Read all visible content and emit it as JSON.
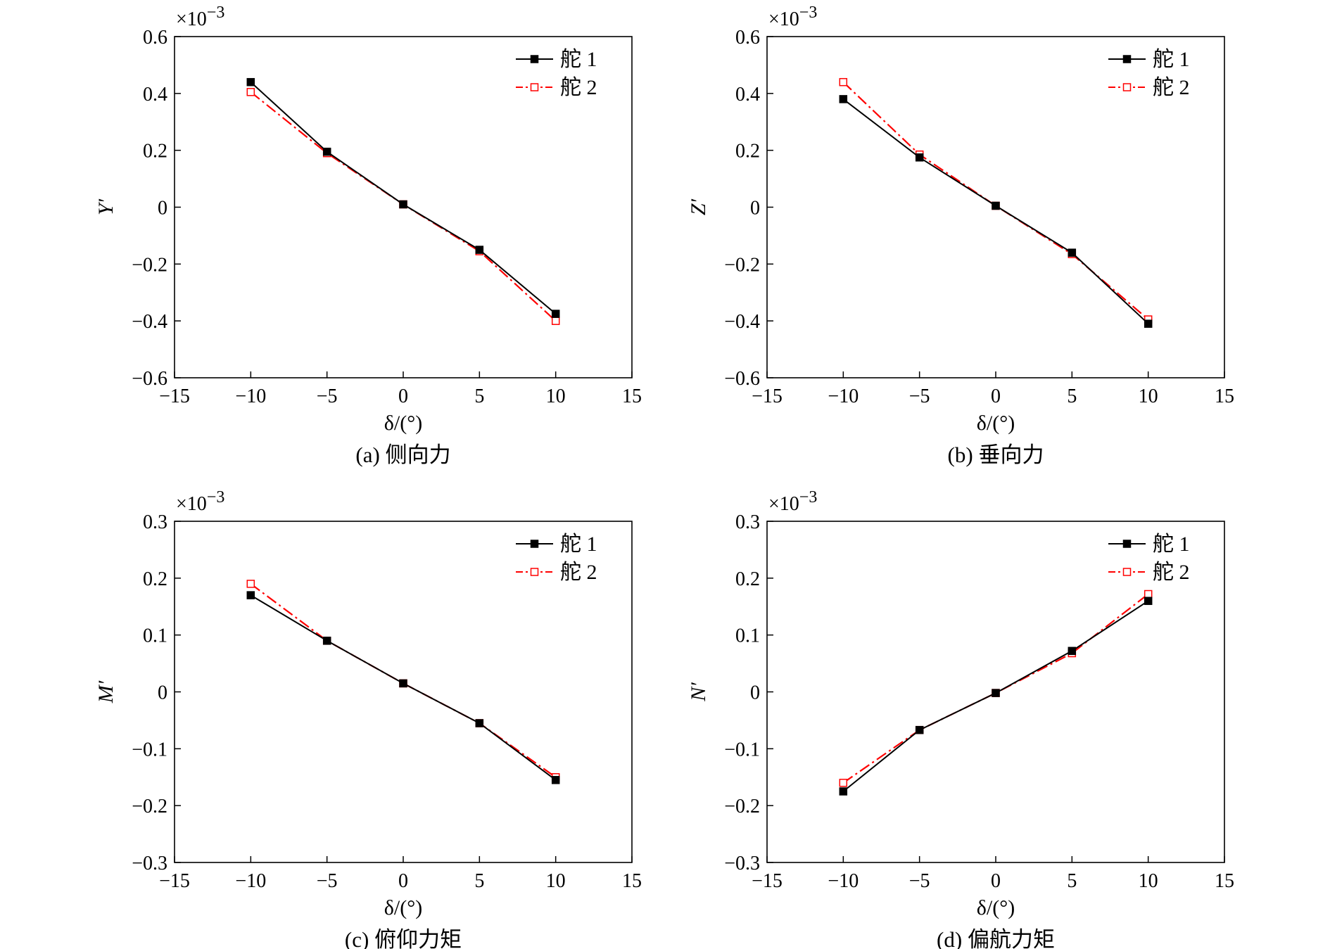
{
  "chart_data": [
    {
      "type": "line",
      "panel": "a",
      "caption": "(a) 侧向力",
      "ylabel": "Y′",
      "xlabel": "δ/(°)",
      "multiplier": "×10",
      "multiplier_exp": "−3",
      "xlim": [
        -15,
        15
      ],
      "ylim": [
        -0.6,
        0.6
      ],
      "xticks": [
        -15,
        -10,
        -5,
        0,
        5,
        10,
        15
      ],
      "xtick_labels": [
        "−15",
        "−10",
        "−5",
        "0",
        "5",
        "10",
        "15"
      ],
      "yticks": [
        0.6,
        0.4,
        0.2,
        0,
        -0.2,
        -0.4,
        -0.6
      ],
      "ytick_labels": [
        "0.6",
        "0.4",
        "0.2",
        "0",
        "−0.2",
        "−0.4",
        "−0.6"
      ],
      "legend_position": "top-right",
      "x": [
        -10,
        -5,
        0,
        5,
        10
      ],
      "series": [
        {
          "name": "舵 1",
          "color": "#000000",
          "style": "solid",
          "marker": "filled-square",
          "values": [
            0.44,
            0.195,
            0.01,
            -0.15,
            -0.375
          ]
        },
        {
          "name": "舵 2",
          "color": "#ff0000",
          "style": "dash-dot",
          "marker": "open-square",
          "values": [
            0.405,
            0.19,
            0.01,
            -0.155,
            -0.4
          ]
        }
      ]
    },
    {
      "type": "line",
      "panel": "b",
      "caption": "(b) 垂向力",
      "ylabel": "Z′",
      "xlabel": "δ/(°)",
      "multiplier": "×10",
      "multiplier_exp": "−3",
      "xlim": [
        -15,
        15
      ],
      "ylim": [
        -0.6,
        0.6
      ],
      "xticks": [
        -15,
        -10,
        -5,
        0,
        5,
        10,
        15
      ],
      "xtick_labels": [
        "−15",
        "−10",
        "−5",
        "0",
        "5",
        "10",
        "15"
      ],
      "yticks": [
        0.6,
        0.4,
        0.2,
        0,
        -0.2,
        -0.4,
        -0.6
      ],
      "ytick_labels": [
        "0.6",
        "0.4",
        "0.2",
        "0",
        "−0.2",
        "−0.4",
        "−0.6"
      ],
      "legend_position": "top-right",
      "x": [
        -10,
        -5,
        0,
        5,
        10
      ],
      "series": [
        {
          "name": "舵 1",
          "color": "#000000",
          "style": "solid",
          "marker": "filled-square",
          "values": [
            0.38,
            0.175,
            0.005,
            -0.16,
            -0.41
          ]
        },
        {
          "name": "舵 2",
          "color": "#ff0000",
          "style": "dash-dot",
          "marker": "open-square",
          "values": [
            0.44,
            0.185,
            0.005,
            -0.165,
            -0.395
          ]
        }
      ]
    },
    {
      "type": "line",
      "panel": "c",
      "caption": "(c) 俯仰力矩",
      "ylabel": "M′",
      "xlabel": "δ/(°)",
      "multiplier": "×10",
      "multiplier_exp": "−3",
      "xlim": [
        -15,
        15
      ],
      "ylim": [
        -0.3,
        0.3
      ],
      "xticks": [
        -15,
        -10,
        -5,
        0,
        5,
        10,
        15
      ],
      "xtick_labels": [
        "−15",
        "−10",
        "−5",
        "0",
        "5",
        "10",
        "15"
      ],
      "yticks": [
        0.3,
        0.2,
        0.1,
        0,
        -0.1,
        -0.2,
        -0.3
      ],
      "ytick_labels": [
        "0.3",
        "0.2",
        "0.1",
        "0",
        "−0.1",
        "−0.2",
        "−0.3"
      ],
      "legend_position": "top-right",
      "x": [
        -10,
        -5,
        0,
        5,
        10
      ],
      "series": [
        {
          "name": "舵 1",
          "color": "#000000",
          "style": "solid",
          "marker": "filled-square",
          "values": [
            0.17,
            0.09,
            0.015,
            -0.055,
            -0.155
          ]
        },
        {
          "name": "舵 2",
          "color": "#ff0000",
          "style": "dash-dot",
          "marker": "open-square",
          "values": [
            0.19,
            0.09,
            0.015,
            -0.055,
            -0.15
          ]
        }
      ]
    },
    {
      "type": "line",
      "panel": "d",
      "caption": "(d) 偏航力矩",
      "ylabel": "N′",
      "xlabel": "δ/(°)",
      "multiplier": "×10",
      "multiplier_exp": "−3",
      "xlim": [
        -15,
        15
      ],
      "ylim": [
        -0.3,
        0.3
      ],
      "xticks": [
        -15,
        -10,
        -5,
        0,
        5,
        10,
        15
      ],
      "xtick_labels": [
        "−15",
        "−10",
        "−5",
        "0",
        "5",
        "10",
        "15"
      ],
      "yticks": [
        0.3,
        0.2,
        0.1,
        0,
        -0.1,
        -0.2,
        -0.3
      ],
      "ytick_labels": [
        "0.3",
        "0.2",
        "0.1",
        "0",
        "−0.1",
        "−0.2",
        "−0.3"
      ],
      "legend_position": "top-right",
      "x": [
        -10,
        -5,
        0,
        5,
        10
      ],
      "series": [
        {
          "name": "舵 1",
          "color": "#000000",
          "style": "solid",
          "marker": "filled-square",
          "values": [
            -0.175,
            -0.067,
            -0.002,
            0.072,
            0.16
          ]
        },
        {
          "name": "舵 2",
          "color": "#ff0000",
          "style": "dash-dot",
          "marker": "open-square",
          "values": [
            -0.16,
            -0.067,
            -0.002,
            0.068,
            0.172
          ]
        }
      ]
    }
  ]
}
